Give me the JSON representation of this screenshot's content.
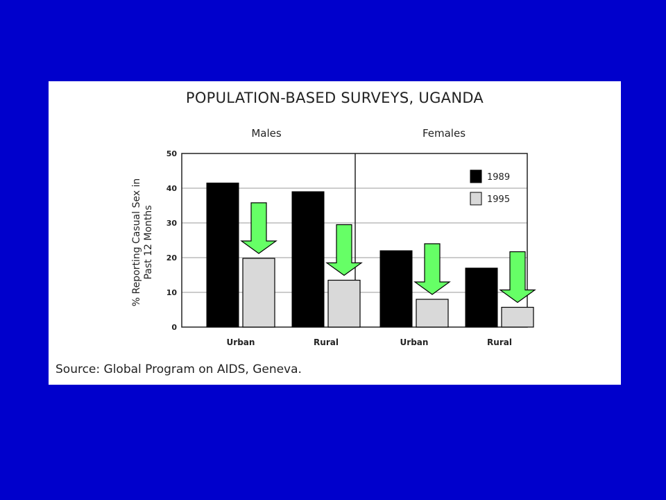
{
  "chart_data": {
    "type": "bar",
    "title": "POPULATION-BASED SURVEYS, UGANDA",
    "groups": [
      "Males",
      "Females"
    ],
    "categories": [
      "Urban",
      "Rural",
      "Urban",
      "Rural"
    ],
    "series": [
      {
        "name": "1989",
        "color": "#000000",
        "values": [
          41.5,
          39,
          22,
          17
        ]
      },
      {
        "name": "1995",
        "color": "#d9d9d9",
        "values": [
          19.8,
          13.5,
          8,
          5.7
        ]
      }
    ],
    "ylabel_line1": "% Reporting Casual Sex in",
    "ylabel_line2": "Past 12 Months",
    "ylim": [
      0,
      50
    ],
    "yticks": [
      "0",
      "10",
      "20",
      "30",
      "40",
      "50"
    ],
    "grid": true,
    "legend_position": "top-right",
    "arrow_color": "#66ff66",
    "source": "Source: Global Program on AIDS, Geneva."
  }
}
